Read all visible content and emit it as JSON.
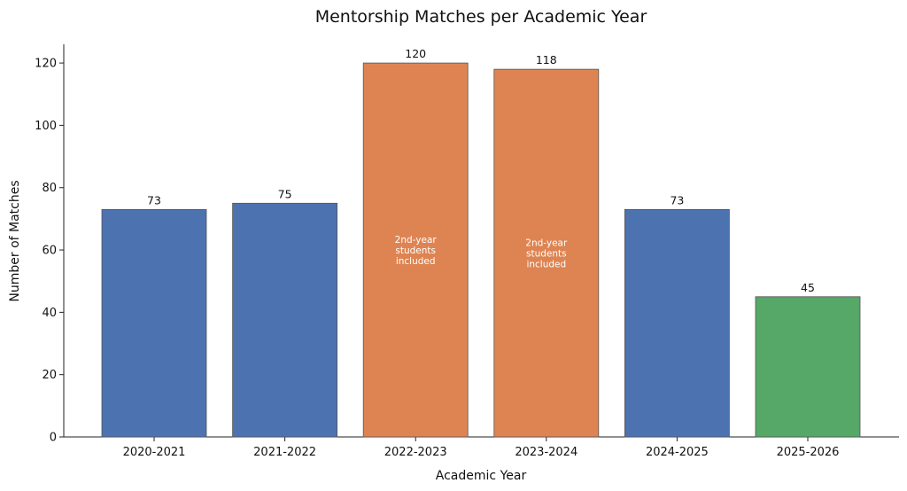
{
  "chart_data": {
    "type": "bar",
    "title": "Mentorship Matches per Academic Year",
    "xlabel": "Academic Year",
    "ylabel": "Number of Matches",
    "categories": [
      "2020-2021",
      "2021-2022",
      "2022-2023",
      "2023-2024",
      "2024-2025",
      "2025-2026"
    ],
    "values": [
      73,
      75,
      120,
      118,
      73,
      45
    ],
    "colors": [
      "#4c72b0",
      "#4c72b0",
      "#dd8452",
      "#dd8452",
      "#4c72b0",
      "#55a868"
    ],
    "annotations": [
      {
        "category": "2022-2023",
        "lines": [
          "2nd-year",
          "students",
          "included"
        ]
      },
      {
        "category": "2023-2024",
        "lines": [
          "2nd-year",
          "students",
          "included"
        ]
      }
    ],
    "ylim": [
      0,
      126
    ],
    "yticks": [
      0,
      20,
      40,
      60,
      80,
      100,
      120
    ],
    "grid": false,
    "legend": "none"
  }
}
